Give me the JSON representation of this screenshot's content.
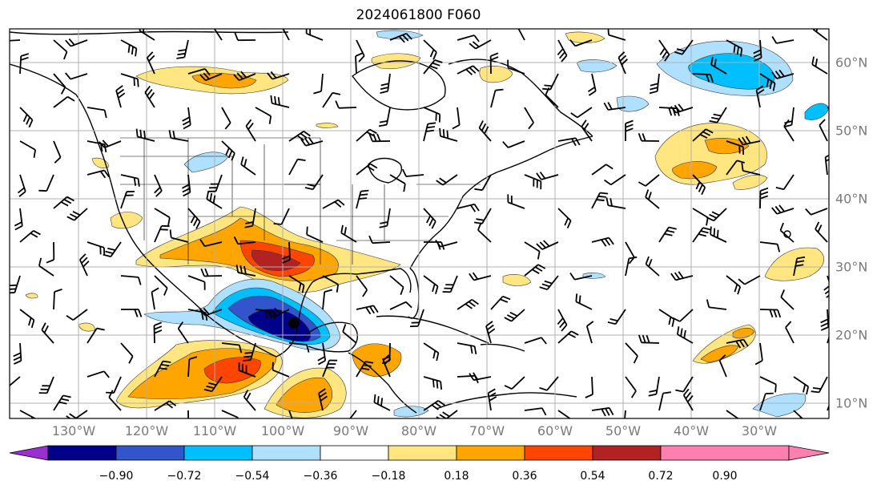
{
  "title": "2024061800 F060",
  "longitude_labels": [
    "130°W",
    "120°W",
    "110°W",
    "100°W",
    "90°W",
    "80°W",
    "70°W",
    "60°W",
    "50°W",
    "40°W",
    "30°W"
  ],
  "latitude_labels": [
    "60°N",
    "50°N",
    "40°N",
    "30°N",
    "20°N",
    "10°N"
  ],
  "colorbar": {
    "ticks": [
      "−0.90",
      "−0.72",
      "−0.54",
      "−0.36",
      "−0.18",
      "0.18",
      "0.36",
      "0.54",
      "0.72",
      "0.90"
    ],
    "colors": [
      "#9b30d0",
      "#00008b",
      "#3355cc",
      "#00bfff",
      "#b0e0ff",
      "#ffffff",
      "#ffe680",
      "#ffa500",
      "#ff4500",
      "#b22222",
      "#ff80b0"
    ]
  },
  "map_colors": {
    "neg_light": "#b0e0ff",
    "neg_mid": "#00bfff",
    "neg_strong": "#3355cc",
    "neg_max": "#00008b",
    "pos_light": "#ffe680",
    "pos_mid": "#ffa500",
    "pos_strong": "#ff4500",
    "pos_max": "#b22222"
  },
  "map_features": [
    "coastlines",
    "state-borders",
    "country-borders",
    "wind-barbs",
    "gridlines"
  ]
}
